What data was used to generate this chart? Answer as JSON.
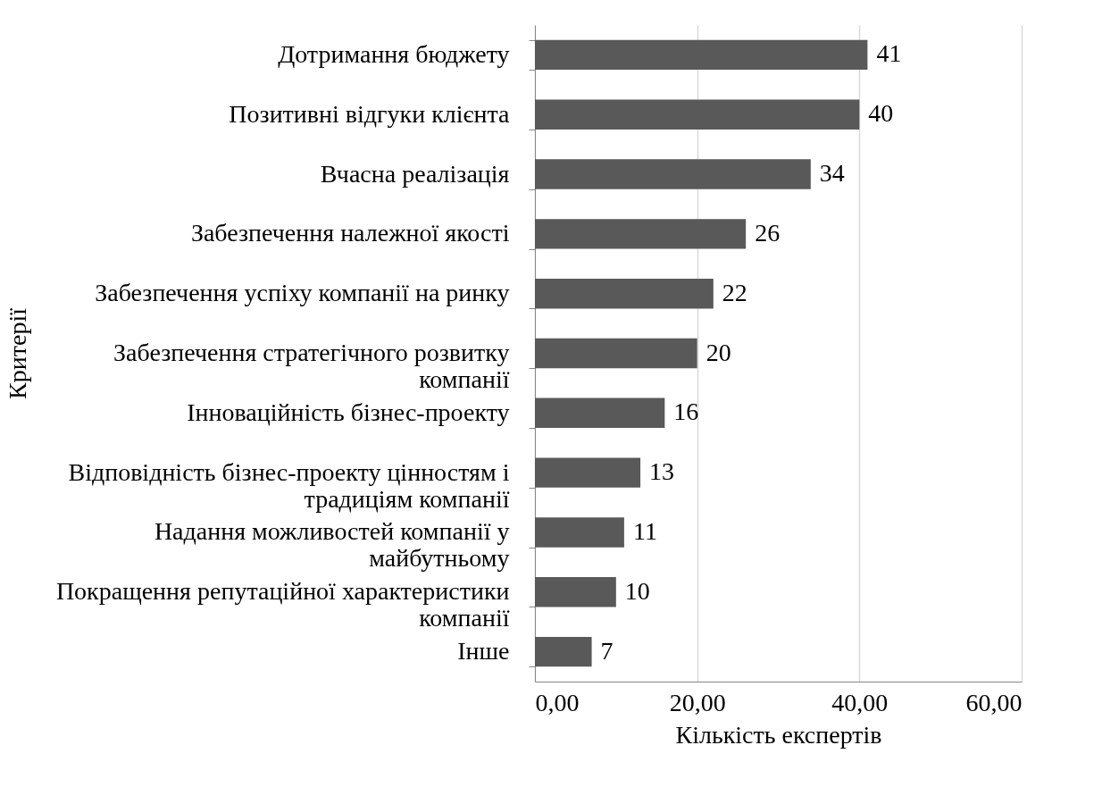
{
  "chart_data": {
    "type": "bar",
    "orientation": "horizontal",
    "xlabel": "Кількість експертів",
    "ylabel": "Критерії",
    "categories": [
      "Дотримання бюджету",
      "Позитивні відгуки клієнта",
      "Вчасна реалізація",
      "Забезпечення належної якості",
      "Забезпечення успіху компанії на ринку",
      "Забезпечення стратегічного розвитку компанії",
      "Інноваційність бізнес-проекту",
      "Відповідність бізнес-проекту цінностям і традиціям компанії",
      "Надання можливостей компанії у майбутньому",
      "Покращення репутаційної характеристики компанії",
      "Інше"
    ],
    "values": [
      41,
      40,
      34,
      26,
      22,
      20,
      16,
      13,
      11,
      10,
      7
    ],
    "color": "#595959",
    "data_labels": true,
    "grid": "x",
    "xlim": [
      0,
      60
    ],
    "xticks": [
      {
        "value": 0,
        "label": "0,00"
      },
      {
        "value": 20,
        "label": "20,00"
      },
      {
        "value": 40,
        "label": "40,00"
      },
      {
        "value": 60,
        "label": "60,00"
      }
    ]
  }
}
